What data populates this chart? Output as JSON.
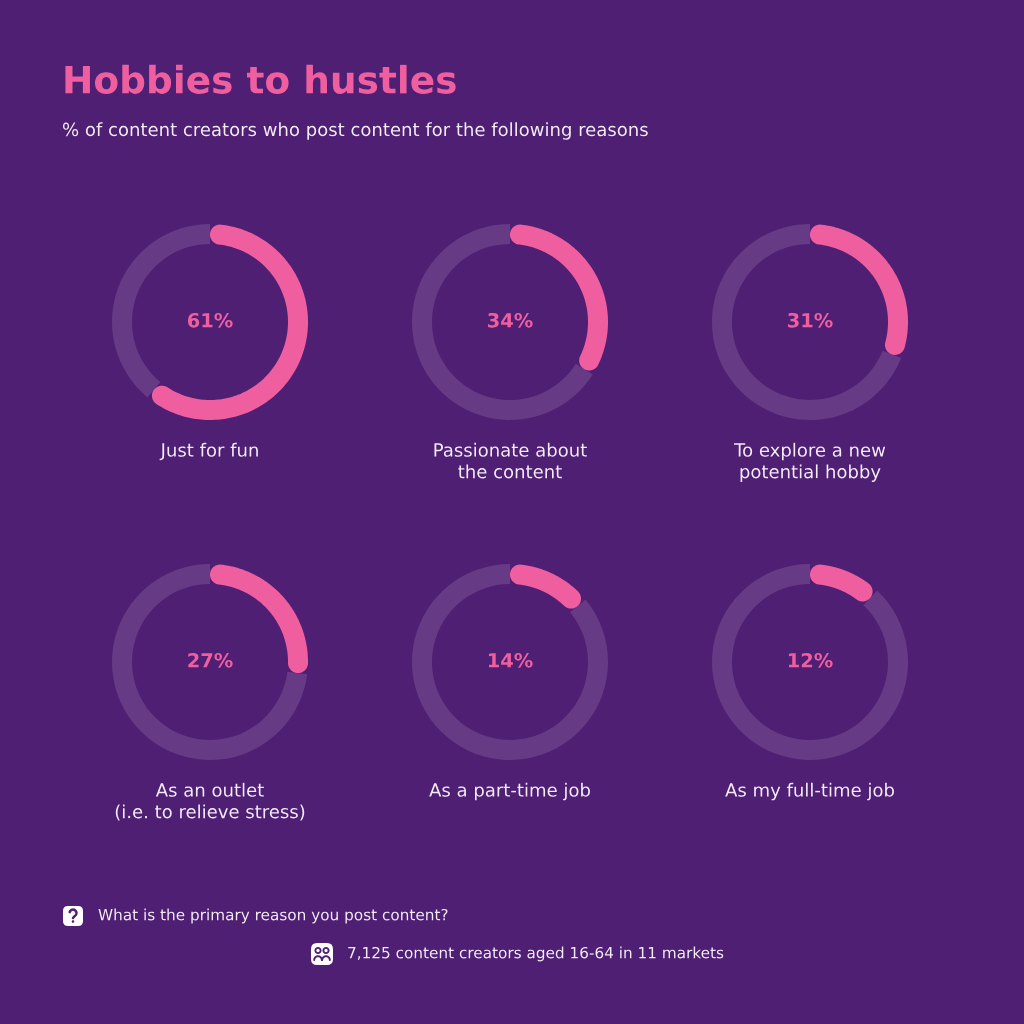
{
  "chart_data": [
    {
      "type": "other",
      "title": "Hobbies to hustles",
      "subtitle": "% of content creators who post content for the following reasons"
    },
    {
      "type": "donut",
      "title": "Just for fun",
      "categories": [
        null,
        null
      ],
      "values": [
        61,
        39
      ],
      "colors": [
        "#ef5fa0",
        "#663a85"
      ],
      "value_labels": [
        "61%",
        null
      ]
    },
    {
      "type": "donut",
      "title": "Passionate about\nthe content",
      "categories": [
        null,
        null
      ],
      "values": [
        34,
        66
      ],
      "colors": [
        "#ef5fa0",
        "#663a85"
      ],
      "value_labels": [
        "34%",
        null
      ]
    },
    {
      "type": "donut",
      "title": "To explore a new\npotential hobby",
      "categories": [
        null,
        null
      ],
      "values": [
        31,
        69
      ],
      "colors": [
        "#ef5fa0",
        "#663a85"
      ],
      "value_labels": [
        "31%",
        null
      ]
    },
    {
      "type": "donut",
      "title": "As an outlet\n(i.e. to relieve stress)",
      "categories": [
        null,
        null
      ],
      "values": [
        27,
        73
      ],
      "colors": [
        "#ef5fa0",
        "#663a85"
      ],
      "value_labels": [
        "27%",
        null
      ]
    },
    {
      "type": "donut",
      "title": "As a part-time job",
      "categories": [
        null,
        null
      ],
      "values": [
        14,
        86
      ],
      "colors": [
        "#ef5fa0",
        "#663a85"
      ],
      "value_labels": [
        "14%",
        null
      ]
    },
    {
      "type": "donut",
      "title": "As my full-time job",
      "categories": [
        null,
        null
      ],
      "values": [
        12,
        88
      ],
      "colors": [
        "#ef5fa0",
        "#663a85"
      ],
      "value_labels": [
        "12%",
        null
      ]
    },
    {
      "type": "other",
      "annotations": [
        "What is the primary reason you post content?",
        "7,125 content creators aged 16-64 in 11 markets"
      ]
    }
  ]
}
